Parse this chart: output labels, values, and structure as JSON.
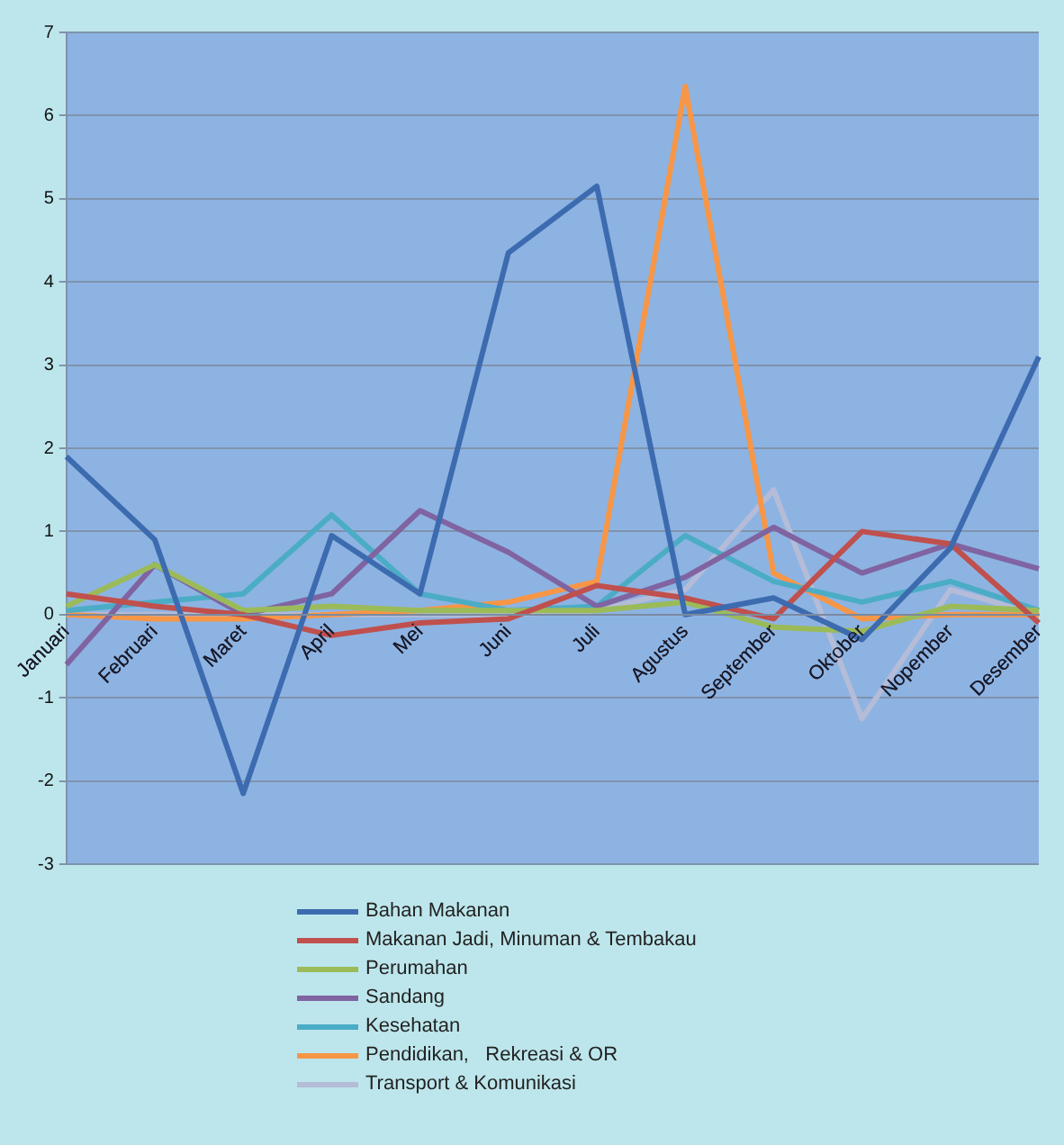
{
  "chart_data": {
    "type": "line",
    "categories": [
      "Januari",
      "Februari",
      "Maret",
      "April",
      "Mei",
      "Juni",
      "Juli",
      "Agustus",
      "September",
      "Oktober",
      "Nopember",
      "Desember"
    ],
    "ylim": [
      -3,
      7
    ],
    "yticks": [
      -3,
      -2,
      -1,
      0,
      1,
      2,
      3,
      4,
      5,
      6,
      7
    ],
    "grid": "y",
    "legend": "bottom",
    "marker": "none",
    "line_style": "solid",
    "series": [
      {
        "name": "Bahan Makanan",
        "color": "#3d6bb0",
        "values": [
          1.9,
          0.9,
          -2.15,
          0.95,
          0.25,
          4.35,
          5.15,
          0.0,
          0.2,
          -0.3,
          0.8,
          3.1
        ]
      },
      {
        "name": "Makanan Jadi, Minuman & Tembakau",
        "color": "#c0504d",
        "values": [
          0.25,
          0.1,
          0.0,
          -0.25,
          -0.1,
          -0.05,
          0.35,
          0.2,
          -0.05,
          1.0,
          0.85,
          -0.1
        ]
      },
      {
        "name": "Perumahan",
        "color": "#9bbb59",
        "values": [
          0.1,
          0.6,
          0.05,
          0.1,
          0.05,
          0.05,
          0.05,
          0.15,
          -0.15,
          -0.2,
          0.1,
          0.05
        ]
      },
      {
        "name": "Sandang",
        "color": "#8064a2",
        "values": [
          -0.6,
          0.6,
          0.0,
          0.25,
          1.25,
          0.75,
          0.1,
          0.45,
          1.05,
          0.5,
          0.85,
          0.55
        ]
      },
      {
        "name": "Kesehatan",
        "color": "#4bacc6",
        "values": [
          0.05,
          0.15,
          0.25,
          1.2,
          0.25,
          0.05,
          0.1,
          0.95,
          0.4,
          0.15,
          0.4,
          0.05
        ]
      },
      {
        "name": "Pendidikan,   Rekreasi & OR",
        "color": "#f79646",
        "values": [
          0.0,
          -0.05,
          -0.05,
          0.0,
          0.05,
          0.15,
          0.4,
          6.35,
          0.5,
          -0.05,
          0.0,
          0.0
        ]
      },
      {
        "name": "Transport & Komunikasi",
        "color": "#b4bcd8",
        "values": [
          0.0,
          0.0,
          0.0,
          0.0,
          0.0,
          0.0,
          0.05,
          0.3,
          1.5,
          -1.25,
          0.3,
          0.0
        ]
      }
    ]
  }
}
